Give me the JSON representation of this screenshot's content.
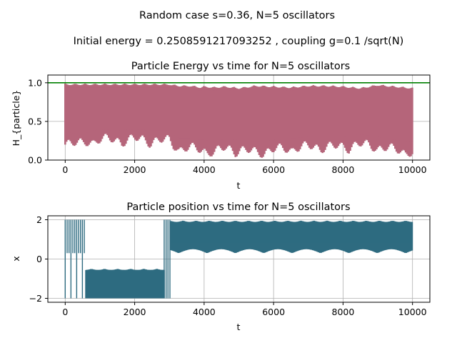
{
  "figure": {
    "suptitle_line1": "Random case s=0.36, N=5 oscillators",
    "suptitle_line2": "Initial energy = 0.2508591217093252 , coupling g=0.1 /sqrt(N)"
  },
  "chart_data": [
    {
      "type": "line",
      "title": "Particle Energy vs time for N=5 oscillators",
      "xlabel": "t",
      "ylabel": "H_{particle}",
      "xlim": [
        -500,
        10500
      ],
      "ylim": [
        0.0,
        1.1
      ],
      "xticks": [
        0,
        2000,
        4000,
        6000,
        8000,
        10000
      ],
      "xtick_labels": [
        "0",
        "2000",
        "4000",
        "6000",
        "8000",
        "10000"
      ],
      "yticks": [
        0.0,
        0.5,
        1.0
      ],
      "ytick_labels": [
        "0.0",
        "0.5",
        "1.0"
      ],
      "grid": true,
      "colors": {
        "series": "#b5657a",
        "reference": "#008000"
      },
      "reference_line": {
        "y": 1.0
      },
      "envelope": {
        "t": [
          0,
          200,
          500,
          700,
          1000,
          1500,
          2000,
          2500,
          3000,
          3100,
          3300,
          3600,
          3900,
          4000,
          4300,
          4600,
          5000,
          5500,
          6000,
          6500,
          7000,
          7500,
          8000,
          8500,
          9000,
          9500,
          10000
        ],
        "upper": [
          0.99,
          0.99,
          0.99,
          0.99,
          0.99,
          0.99,
          0.99,
          0.99,
          0.99,
          0.98,
          0.97,
          0.97,
          0.95,
          0.96,
          0.95,
          0.96,
          0.94,
          0.97,
          0.96,
          0.95,
          0.97,
          0.97,
          0.96,
          0.94,
          0.98,
          0.96,
          0.94
        ],
        "lower": [
          0.2,
          0.17,
          0.15,
          0.19,
          0.22,
          0.2,
          0.22,
          0.2,
          0.2,
          0.15,
          0.1,
          0.1,
          0.08,
          0.08,
          0.05,
          0.1,
          0.08,
          0.05,
          0.08,
          0.1,
          0.12,
          0.12,
          0.12,
          0.15,
          0.12,
          0.08,
          0.05
        ]
      }
    },
    {
      "type": "line",
      "title": "Particle position vs time for N=5 oscillators",
      "xlabel": "t",
      "ylabel": "x",
      "xlim": [
        -500,
        10500
      ],
      "ylim": [
        -2.2,
        2.2
      ],
      "xticks": [
        0,
        2000,
        4000,
        6000,
        8000,
        10000
      ],
      "xtick_labels": [
        "0",
        "2000",
        "4000",
        "6000",
        "8000",
        "10000"
      ],
      "yticks": [
        -2,
        0,
        2
      ],
      "ytick_labels": [
        "−2",
        "0",
        "2"
      ],
      "grid": true,
      "colors": {
        "series": "#2e6b80"
      },
      "segments": [
        {
          "t_start": 0,
          "t_end": 600,
          "x_upper": 2.0,
          "x_lower": 0.3,
          "switching": true
        },
        {
          "t_start": 600,
          "t_end": 2850,
          "x_upper": -0.5,
          "x_lower": -2.0
        },
        {
          "t_start": 2850,
          "t_end": 3050,
          "x_upper": 2.0,
          "x_lower": -2.0,
          "switching": true
        },
        {
          "t_start": 3050,
          "t_end": 10000,
          "x_upper": 1.95,
          "x_lower": 0.3
        }
      ]
    }
  ]
}
